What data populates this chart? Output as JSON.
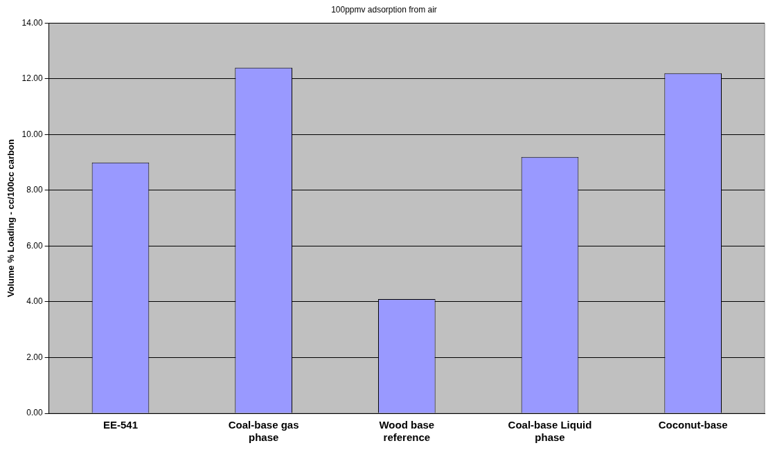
{
  "chart_data": {
    "type": "bar",
    "title": "100ppmv adsorption from air",
    "ylabel": "Volume % Loading - cc/100cc carbon",
    "categories": [
      "EE-541",
      "Coal-base gas phase",
      "Wood base reference",
      "Coal-base Liquid phase",
      "Coconut-base"
    ],
    "values": [
      9.0,
      12.4,
      4.1,
      9.2,
      12.2
    ],
    "color": "#9999ff",
    "ylim": [
      0,
      14
    ],
    "yticks": [
      {
        "value": 0,
        "label": "0.00"
      },
      {
        "value": 2,
        "label": "2.00"
      },
      {
        "value": 4,
        "label": "4.00"
      },
      {
        "value": 6,
        "label": "6.00"
      },
      {
        "value": 8,
        "label": "8.00"
      },
      {
        "value": 10,
        "label": "10.00"
      },
      {
        "value": 12,
        "label": "12.00"
      },
      {
        "value": 14,
        "label": "14.00"
      }
    ],
    "grid": "y"
  }
}
